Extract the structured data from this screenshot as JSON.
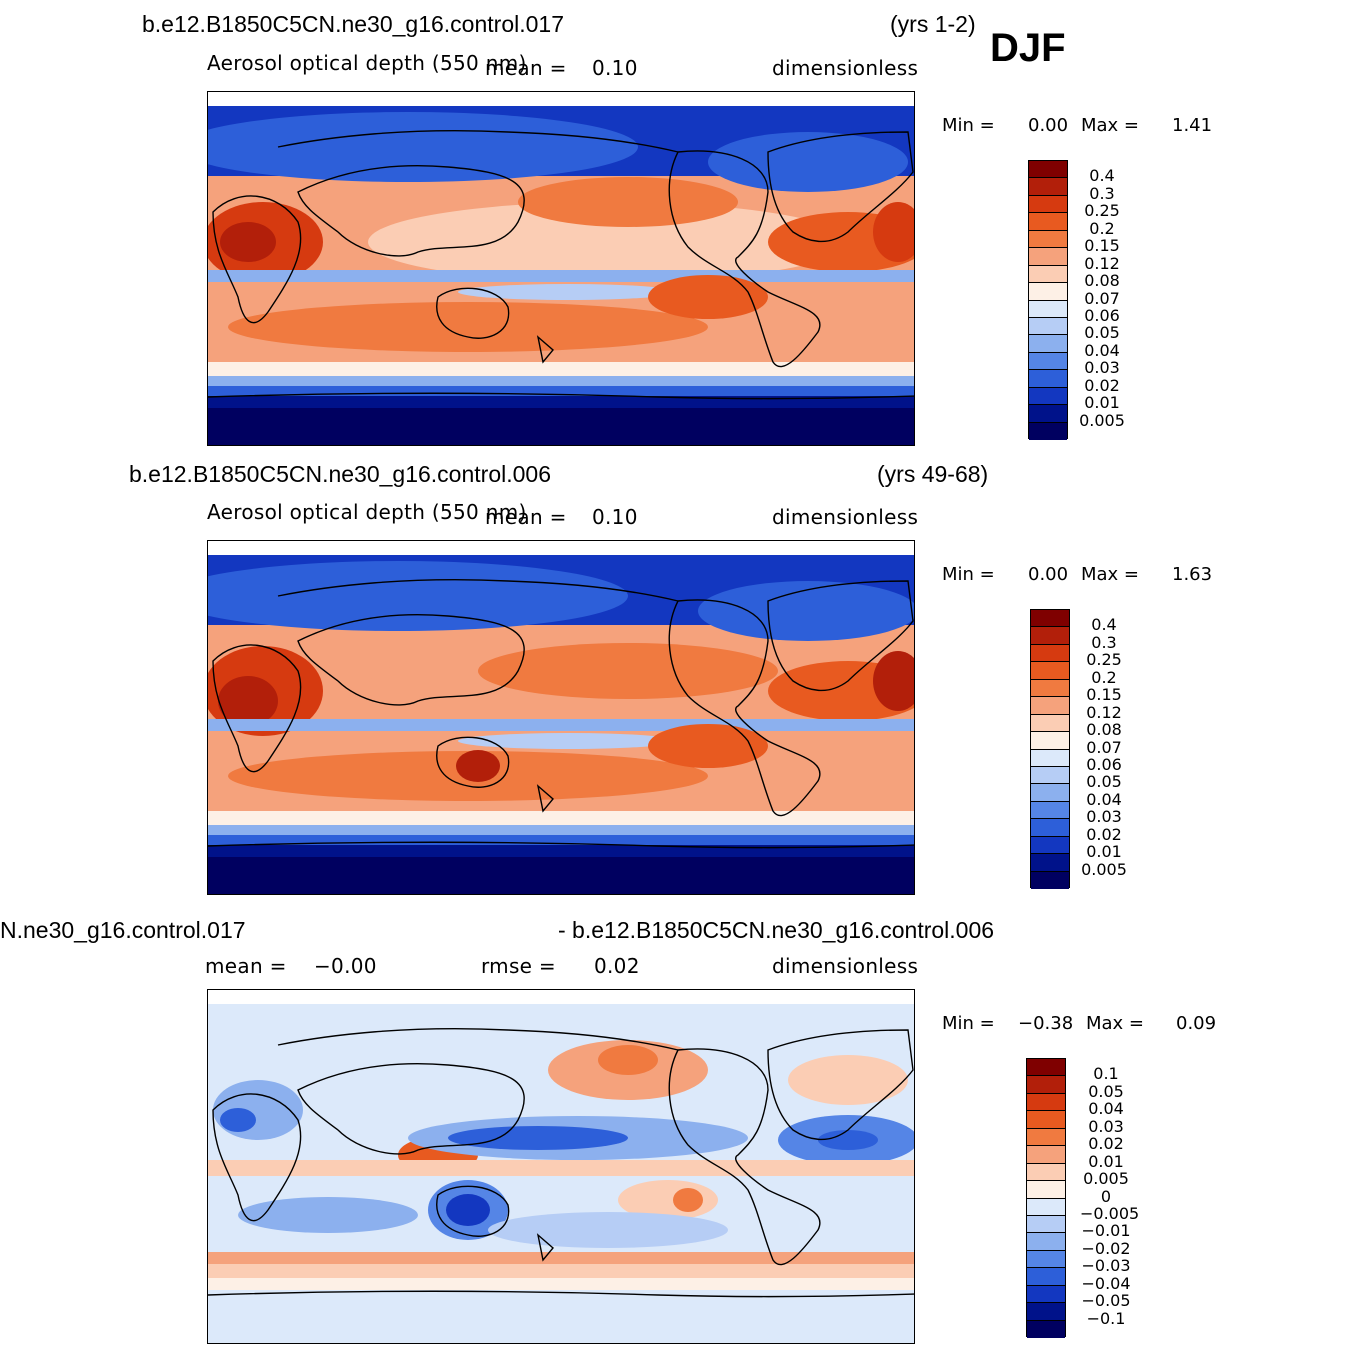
{
  "season": "DJF",
  "panels": [
    {
      "case": "b.e12.B1850C5CN.ne30_g16.control.017",
      "years": "(yrs 1-2)",
      "variable": "Aerosol optical depth (550 nm)",
      "mean_label": "mean =",
      "mean_value": "0.10",
      "units": "dimensionless",
      "min_label": "Min  =",
      "min_value": "0.00",
      "max_label": "Max  =",
      "max_value": "1.41",
      "colorbar": [
        "0.4",
        "0.3",
        "0.25",
        "0.2",
        "0.15",
        "0.12",
        "0.08",
        "0.07",
        "0.06",
        "0.05",
        "0.04",
        "0.03",
        "0.02",
        "0.01",
        "0.005"
      ]
    },
    {
      "case": "b.e12.B1850C5CN.ne30_g16.control.006",
      "years": "(yrs 49-68)",
      "variable": "Aerosol optical depth (550 nm)",
      "mean_label": "mean =",
      "mean_value": "0.10",
      "units": "dimensionless",
      "min_label": "Min  =",
      "min_value": "0.00",
      "max_label": "Max  =",
      "max_value": "1.63",
      "colorbar": [
        "0.4",
        "0.3",
        "0.25",
        "0.2",
        "0.15",
        "0.12",
        "0.08",
        "0.07",
        "0.06",
        "0.05",
        "0.04",
        "0.03",
        "0.02",
        "0.01",
        "0.005"
      ]
    },
    {
      "case_left": "N.ne30_g16.control.017",
      "case_right": "- b.e12.B1850C5CN.ne30_g16.control.006",
      "mean_label": "mean  =",
      "mean_value": "−0.00",
      "rmse_label": "rmse  =",
      "rmse_value": "0.02",
      "units": "dimensionless",
      "min_label": "Min  =",
      "min_value": "−0.38",
      "max_label": "Max  =",
      "max_value": "0.09",
      "colorbar": [
        "0.1",
        "0.05",
        "0.04",
        "0.03",
        "0.02",
        "0.01",
        "0.005",
        "0",
        "−0.005",
        "−0.01",
        "−0.02",
        "−0.03",
        "−0.04",
        "−0.05",
        "−0.1"
      ]
    }
  ],
  "colors": {
    "abs_scale": [
      "#7f0000",
      "#b21f0a",
      "#d63a10",
      "#e85a20",
      "#f07a40",
      "#f5a27c",
      "#fbcdb4",
      "#fdf0e6",
      "#dce9fa",
      "#b6cdf5",
      "#8cb0ee",
      "#5585e6",
      "#2d5fd9",
      "#1337c0",
      "#00128a",
      "#000060"
    ],
    "diff_scale": [
      "#7f0000",
      "#b21f0a",
      "#d63a10",
      "#e85a20",
      "#f07a40",
      "#f5a27c",
      "#fbcdb4",
      "#fdf0e6",
      "#dce9fa",
      "#b6cdf5",
      "#8cb0ee",
      "#5585e6",
      "#2d5fd9",
      "#1337c0",
      "#00128a",
      "#000060"
    ]
  }
}
